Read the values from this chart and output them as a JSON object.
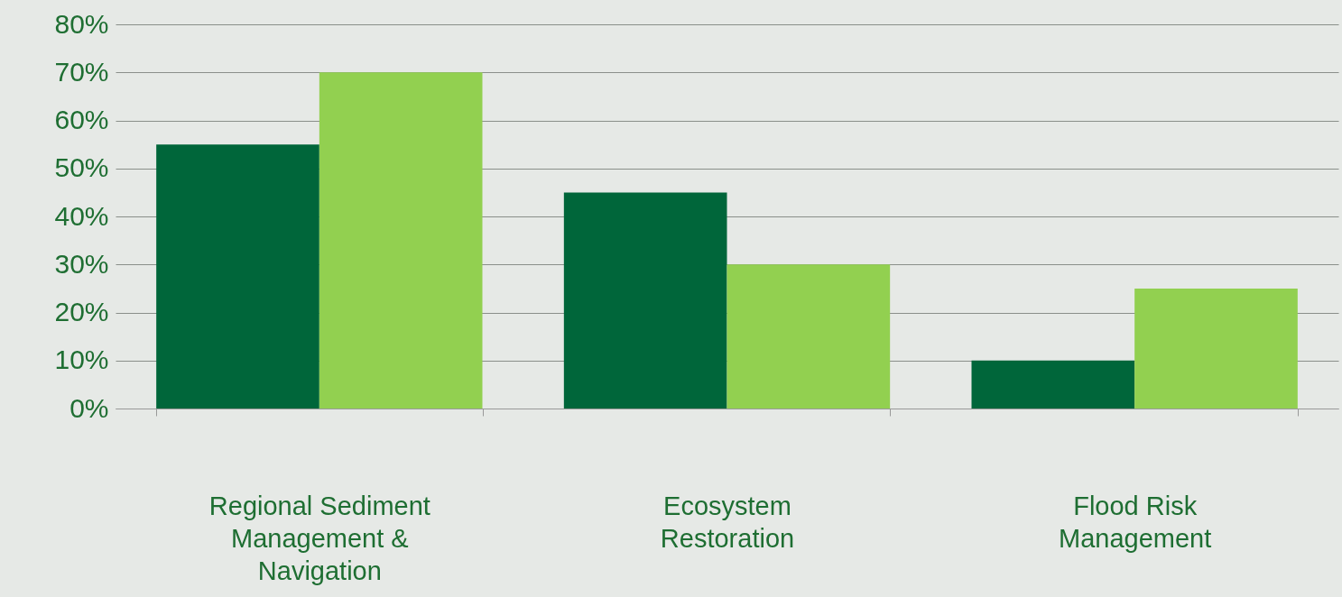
{
  "chart_data": {
    "type": "bar",
    "categories": [
      "Regional Sediment Management & Navigation",
      "Ecosystem Restoration",
      "Flood Risk Management"
    ],
    "series": [
      {
        "color": "#00663a",
        "values": [
          55,
          45,
          10
        ]
      },
      {
        "color": "#92d050",
        "values": [
          70,
          30,
          25
        ]
      }
    ],
    "ylim": [
      0,
      80
    ],
    "yticks": [
      {
        "value": 0,
        "label": "0%"
      },
      {
        "value": 10,
        "label": "10%"
      },
      {
        "value": 20,
        "label": "20%"
      },
      {
        "value": 30,
        "label": "30%"
      },
      {
        "value": 40,
        "label": "40%"
      },
      {
        "value": 50,
        "label": "50%"
      },
      {
        "value": 60,
        "label": "60%"
      },
      {
        "value": 70,
        "label": "70%"
      },
      {
        "value": 80,
        "label": "80%"
      }
    ],
    "grid": "y",
    "legend": false
  }
}
